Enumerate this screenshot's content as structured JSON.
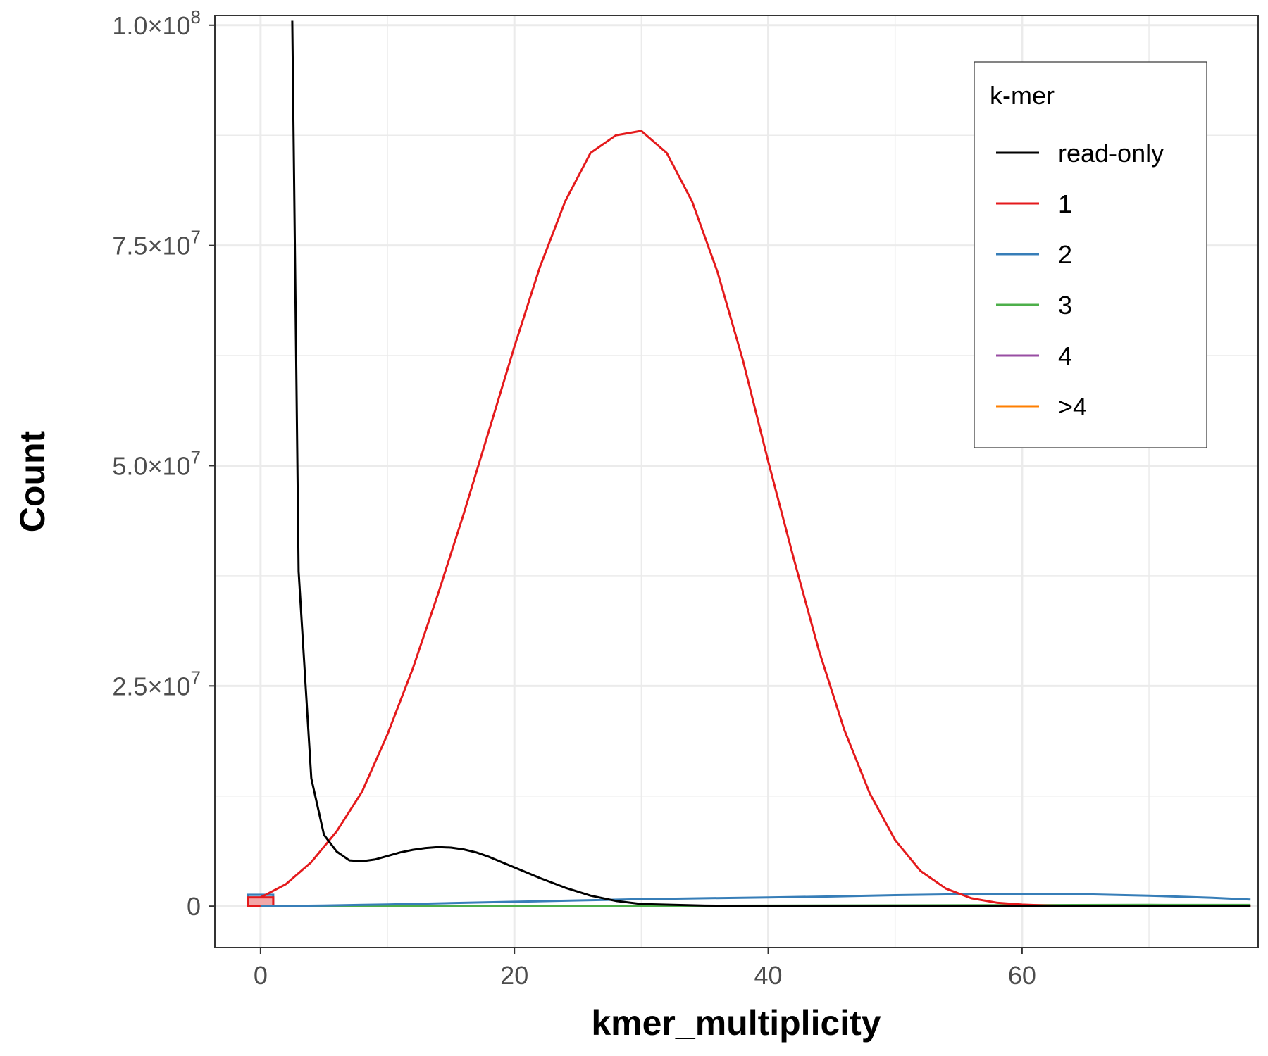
{
  "chart_data": {
    "type": "line",
    "xlabel": "kmer_multiplicity",
    "ylabel": "Count",
    "xlim": [
      -3.6,
      78.6
    ],
    "ylim": [
      -4700000,
      101100000
    ],
    "x_ticks": [
      0,
      20,
      40,
      60
    ],
    "x_tick_labels": [
      "0",
      "20",
      "40",
      "60"
    ],
    "y_ticks": [
      0,
      25000000,
      50000000,
      75000000,
      100000000
    ],
    "y_tick_labels": [
      {
        "mant": "0",
        "exp": ""
      },
      {
        "mant": "2.5",
        "exp": "7"
      },
      {
        "mant": "5.0",
        "exp": "7"
      },
      {
        "mant": "7.5",
        "exp": "7"
      },
      {
        "mant": "1.0",
        "exp": "8"
      }
    ],
    "grid": true,
    "legend": {
      "title": "k-mer",
      "position": "top-right",
      "entries": [
        "read-only",
        "1",
        "2",
        "3",
        "4",
        ">4"
      ]
    },
    "series": [
      {
        "name": "read-only",
        "color": "#000000",
        "x": [
          2.5,
          3,
          4,
          5,
          6,
          7,
          8,
          9,
          10,
          11,
          12,
          13,
          14,
          15,
          16,
          17,
          18,
          19,
          20,
          22,
          24,
          26,
          28,
          30,
          35,
          40,
          50,
          60,
          70,
          78
        ],
        "y": [
          100500000,
          38000000,
          14500000,
          8100000,
          6200000,
          5200000,
          5100000,
          5300000,
          5700000,
          6100000,
          6400000,
          6600000,
          6700000,
          6650000,
          6450000,
          6100000,
          5600000,
          5000000,
          4400000,
          3200000,
          2100000,
          1200000,
          600000,
          250000,
          60000,
          10000,
          0,
          0,
          0,
          0
        ]
      },
      {
        "name": "1",
        "color": "#e41a1c",
        "x": [
          0,
          2,
          4,
          6,
          8,
          10,
          12,
          14,
          16,
          18,
          20,
          22,
          24,
          26,
          28,
          30,
          32,
          34,
          36,
          38,
          40,
          42,
          44,
          46,
          48,
          50,
          52,
          54,
          56,
          58,
          60,
          62,
          64,
          66,
          70,
          78
        ],
        "y": [
          1000000,
          2500000,
          5000000,
          8500000,
          13000000,
          19500000,
          27000000,
          35500000,
          44500000,
          54000000,
          63500000,
          72500000,
          80000000,
          85500000,
          87500000,
          88000000,
          85500000,
          80000000,
          72000000,
          62000000,
          50500000,
          39500000,
          29000000,
          20000000,
          12800000,
          7500000,
          4000000,
          2000000,
          900000,
          400000,
          180000,
          80000,
          30000,
          10000,
          0,
          0
        ]
      },
      {
        "name": "2",
        "color": "#377eb8",
        "x": [
          0,
          5,
          10,
          15,
          20,
          25,
          30,
          35,
          40,
          45,
          50,
          55,
          60,
          65,
          70,
          75,
          78
        ],
        "y": [
          0,
          80000,
          200000,
          350000,
          500000,
          650000,
          800000,
          900000,
          1000000,
          1100000,
          1250000,
          1350000,
          1400000,
          1350000,
          1200000,
          950000,
          750000
        ]
      },
      {
        "name": "3",
        "color": "#4daf4a",
        "x": [
          0,
          20,
          40,
          60,
          70,
          78
        ],
        "y": [
          0,
          20000,
          60000,
          120000,
          150000,
          140000
        ]
      },
      {
        "name": "4",
        "color": "#984ea3",
        "x": [
          0,
          40,
          78
        ],
        "y": [
          0,
          10000,
          20000
        ]
      },
      {
        "name": ">4",
        "color": "#ff7f00",
        "x": [
          0,
          20,
          40,
          60,
          78
        ],
        "y": [
          0,
          5000,
          10000,
          20000,
          30000
        ]
      }
    ],
    "bars_at_zero": [
      {
        "series": "2",
        "value": 1300000,
        "fill": "#9ec2de",
        "stroke": "#377eb8"
      },
      {
        "series": "1",
        "value": 1000000,
        "fill": "#f2a7a8",
        "stroke": "#e41a1c"
      }
    ]
  }
}
